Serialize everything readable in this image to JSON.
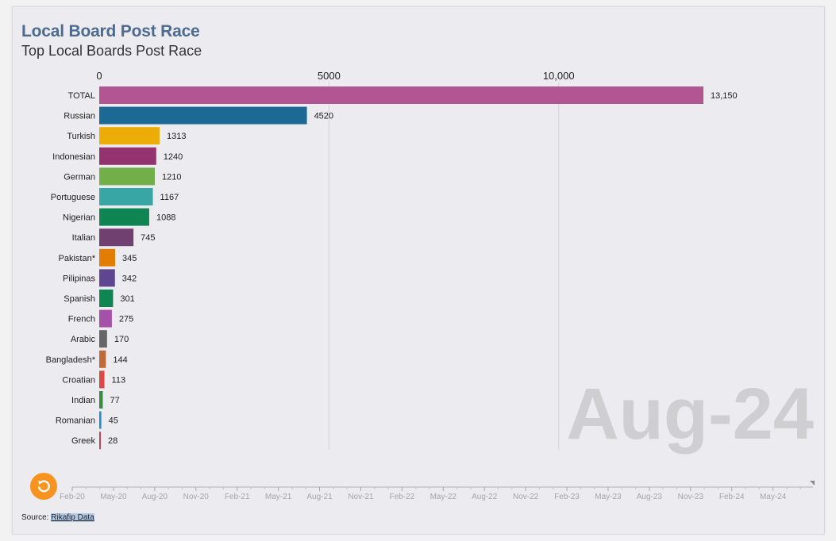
{
  "title": "Local Board Post Race",
  "subtitle": "Top Local Boards Post Race",
  "period_label": "Aug-24",
  "source": {
    "prefix": "Source: ",
    "link_text": "Rikafip Data"
  },
  "replay_icon": "replay-icon",
  "colors": {
    "title": "#4d6b8f",
    "replay": "#f7931e",
    "grid": "#d4d4d9",
    "watermark": "#cfcfd2"
  },
  "chart_data": {
    "type": "bar",
    "orientation": "horizontal",
    "xlim": [
      0,
      13150
    ],
    "grid": true,
    "x_ticks": [
      {
        "value": 0,
        "label": "0"
      },
      {
        "value": 5000,
        "label": "5000"
      },
      {
        "value": 10000,
        "label": "10,000"
      }
    ],
    "categories": [
      "TOTAL",
      "Russian",
      "Turkish",
      "Indonesian",
      "German",
      "Portuguese",
      "Nigerian",
      "Italian",
      "Pakistan*",
      "Pilipinas",
      "Spanish",
      "French",
      "Arabic",
      "Bangladesh*",
      "Croatian",
      "Indian",
      "Romanian",
      "Greek"
    ],
    "values": [
      13150,
      4520,
      1313,
      1240,
      1210,
      1167,
      1088,
      745,
      345,
      342,
      301,
      275,
      170,
      144,
      113,
      77,
      45,
      28
    ],
    "value_labels": [
      "13,150",
      "4520",
      "1313",
      "1240",
      "1210",
      "1167",
      "1088",
      "745",
      "345",
      "342",
      "301",
      "275",
      "170",
      "144",
      "113",
      "77",
      "45",
      "28"
    ],
    "bar_colors": [
      "#b35592",
      "#1d6996",
      "#edad08",
      "#94346e",
      "#73af48",
      "#38a6a5",
      "#0f8554",
      "#6f4070",
      "#e17c05",
      "#5f4690",
      "#0f8554",
      "#a452a9",
      "#666666",
      "#c06a3c",
      "#d94a45",
      "#3b8a3f",
      "#1c8ecc",
      "#c4405f"
    ],
    "timeline": {
      "labels": [
        "Feb-20",
        "May-20",
        "Aug-20",
        "Nov-20",
        "Feb-21",
        "May-21",
        "Aug-21",
        "Nov-21",
        "Feb-22",
        "May-22",
        "Aug-22",
        "Nov-22",
        "Feb-23",
        "May-23",
        "Aug-23",
        "Nov-23",
        "Feb-24",
        "May-24"
      ],
      "current": "Aug-24"
    }
  }
}
